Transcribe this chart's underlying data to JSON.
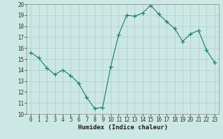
{
  "x": [
    0,
    1,
    2,
    3,
    4,
    5,
    6,
    7,
    8,
    9,
    10,
    11,
    12,
    13,
    14,
    15,
    16,
    17,
    18,
    19,
    20,
    21,
    22,
    23
  ],
  "y": [
    15.6,
    15.1,
    14.2,
    13.6,
    14.0,
    13.5,
    12.8,
    11.5,
    10.5,
    10.6,
    14.3,
    17.2,
    19.0,
    18.9,
    19.2,
    19.9,
    19.1,
    18.4,
    17.8,
    16.6,
    17.3,
    17.6,
    15.8,
    14.7
  ],
  "line_color": "#1a7a6e",
  "marker": "+",
  "marker_size": 4,
  "bg_color": "#cce8e4",
  "grid_color": "#b0ccc8",
  "xlabel": "Humidex (Indice chaleur)",
  "xlim": [
    -0.5,
    23.5
  ],
  "ylim": [
    10,
    20
  ],
  "yticks": [
    10,
    11,
    12,
    13,
    14,
    15,
    16,
    17,
    18,
    19,
    20
  ],
  "xticks": [
    0,
    1,
    2,
    3,
    4,
    5,
    6,
    7,
    8,
    9,
    10,
    11,
    12,
    13,
    14,
    15,
    16,
    17,
    18,
    19,
    20,
    21,
    22,
    23
  ],
  "xlabel_fontsize": 6.5,
  "tick_fontsize": 5.5,
  "line_width": 0.8,
  "marker_linewidth": 0.8
}
